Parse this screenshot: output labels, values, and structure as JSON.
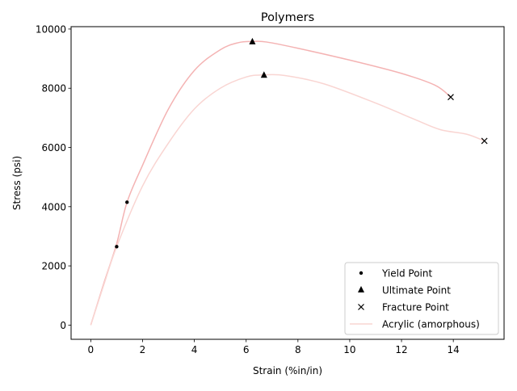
{
  "chart_data": {
    "type": "line",
    "title": "Polymers",
    "xlabel": "Strain (%in/in)",
    "ylabel": "Stress (psi)",
    "xlim": [
      -0.76,
      15.96
    ],
    "ylim": [
      -480,
      10080
    ],
    "xticks": [
      "0",
      "2",
      "4",
      "6",
      "8",
      "10",
      "12",
      "14"
    ],
    "yticks": [
      "0",
      "2000",
      "4000",
      "6000",
      "8000",
      "10000"
    ],
    "grid": false,
    "legend_position": "lower-right",
    "legend": [
      "Yield Point",
      "Ultimate Point",
      "Fracture Point",
      "Acrylic (amorphous)"
    ],
    "series": [
      {
        "color": "#f4b3b3",
        "x": [
          0,
          0.5,
          1.0,
          1.4,
          2.0,
          3.0,
          4.0,
          5.0,
          5.7,
          6.24,
          6.8,
          8.0,
          10.0,
          12.0,
          13.3,
          13.9
        ],
        "y": [
          0,
          1400,
          2750,
          4150,
          5400,
          7300,
          8600,
          9300,
          9540,
          9580,
          9560,
          9350,
          8950,
          8500,
          8100,
          7700
        ],
        "yield": [
          1.4,
          4150
        ],
        "ultimate": [
          6.24,
          9580
        ],
        "fracture": [
          13.9,
          7700
        ]
      },
      {
        "name": "Acrylic (amorphous)",
        "color": "#f9d5d2",
        "x": [
          0,
          0.5,
          1.0,
          2.0,
          3.0,
          4.0,
          5.0,
          6.0,
          6.69,
          7.5,
          9.0,
          11.0,
          12.5,
          13.5,
          14.5,
          15.2
        ],
        "y": [
          0,
          1350,
          2650,
          4700,
          6150,
          7300,
          8000,
          8380,
          8450,
          8430,
          8150,
          7500,
          6950,
          6600,
          6450,
          6220
        ],
        "yield": [
          1.0,
          2650
        ],
        "ultimate": [
          6.69,
          8450
        ],
        "fracture": [
          15.2,
          6220
        ]
      }
    ]
  }
}
